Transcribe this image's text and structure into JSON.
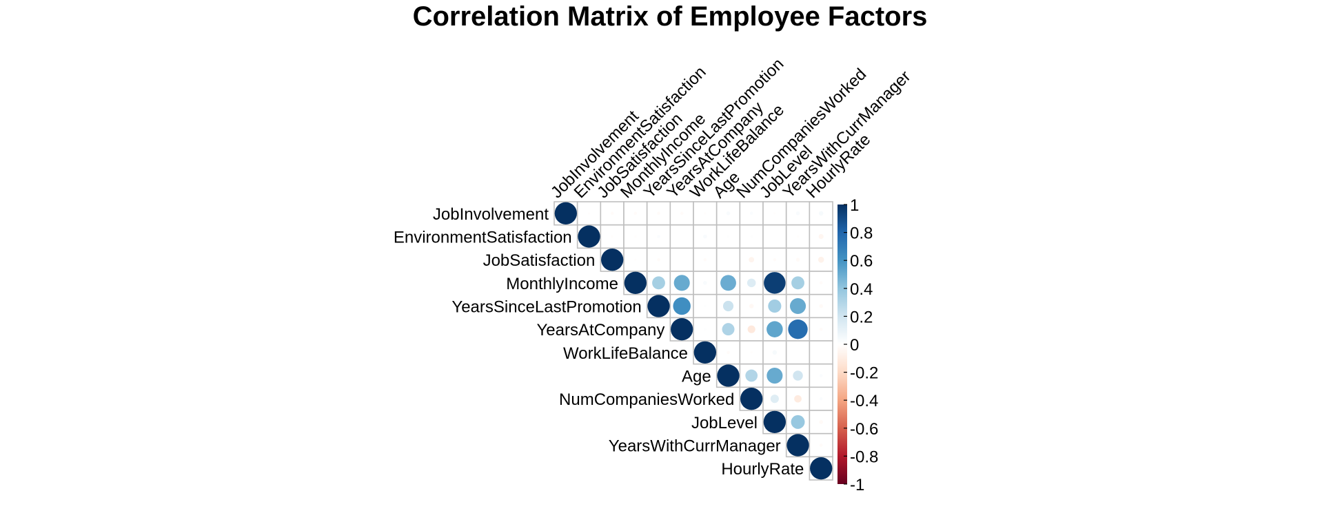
{
  "chart_data": {
    "type": "heatmap",
    "subtype": "corrplot-upper-circle",
    "title": "Correlation Matrix of Employee Factors",
    "variables": [
      "JobInvolvement",
      "EnvironmentSatisfaction",
      "JobSatisfaction",
      "MonthlyIncome",
      "YearsSinceLastPromotion",
      "YearsAtCompany",
      "WorkLifeBalance",
      "Age",
      "NumCompaniesWorked",
      "JobLevel",
      "YearsWithCurrManager",
      "HourlyRate"
    ],
    "matrix": [
      [
        1.0,
        -0.01,
        -0.02,
        -0.02,
        -0.02,
        -0.02,
        -0.01,
        0.03,
        0.02,
        -0.01,
        0.03,
        0.04
      ],
      [
        -0.01,
        1.0,
        -0.01,
        -0.01,
        0.02,
        0.0,
        0.03,
        0.01,
        0.01,
        0.0,
        -0.01,
        -0.05
      ],
      [
        -0.02,
        -0.01,
        1.0,
        -0.01,
        -0.02,
        0.0,
        -0.02,
        0.0,
        -0.06,
        -0.02,
        -0.03,
        -0.07
      ],
      [
        -0.02,
        -0.01,
        -0.01,
        1.0,
        0.34,
        0.51,
        0.03,
        0.5,
        0.15,
        0.95,
        0.34,
        -0.02
      ],
      [
        -0.02,
        0.02,
        -0.02,
        0.34,
        1.0,
        0.62,
        0.01,
        0.22,
        -0.04,
        0.35,
        0.51,
        -0.03
      ],
      [
        -0.02,
        0.0,
        0.0,
        0.51,
        0.62,
        1.0,
        0.01,
        0.31,
        -0.12,
        0.53,
        0.77,
        -0.02
      ],
      [
        -0.01,
        0.03,
        -0.02,
        0.03,
        0.01,
        0.01,
        1.0,
        -0.02,
        -0.01,
        0.04,
        0.0,
        -0.0
      ],
      [
        0.03,
        0.01,
        0.0,
        0.5,
        0.22,
        0.31,
        -0.02,
        1.0,
        0.3,
        0.51,
        0.2,
        0.02
      ],
      [
        0.02,
        0.01,
        -0.06,
        0.15,
        -0.04,
        -0.12,
        -0.01,
        0.3,
        1.0,
        0.14,
        -0.11,
        0.02
      ],
      [
        -0.01,
        0.0,
        -0.02,
        0.95,
        0.35,
        0.53,
        0.04,
        0.51,
        0.14,
        1.0,
        0.38,
        -0.03
      ],
      [
        0.03,
        -0.01,
        -0.03,
        0.34,
        0.51,
        0.77,
        0.0,
        0.2,
        -0.11,
        0.38,
        1.0,
        -0.02
      ],
      [
        0.04,
        -0.05,
        -0.07,
        -0.02,
        -0.03,
        -0.02,
        -0.0,
        0.02,
        0.02,
        -0.03,
        -0.02,
        1.0
      ]
    ],
    "colorbar": {
      "range": [
        -1,
        1
      ],
      "ticks": [
        1,
        0.8,
        0.6,
        0.4,
        0.2,
        0,
        -0.2,
        -0.4,
        -0.6,
        -0.8,
        -1
      ],
      "tick_labels": [
        "1",
        "0.8",
        "0.6",
        "0.4",
        "0.2",
        "0",
        "-0.2",
        "-0.4",
        "-0.6",
        "-0.8",
        "-1"
      ],
      "colors_low_to_high": [
        "#67001F",
        "#B2182B",
        "#D6604D",
        "#F4A582",
        "#FDDBC7",
        "#FFFFFF",
        "#D1E5F0",
        "#92C5DE",
        "#4393C3",
        "#2166AC",
        "#053061"
      ]
    },
    "grid_color": "#bebebe",
    "grid": true,
    "legend_position": "right"
  }
}
